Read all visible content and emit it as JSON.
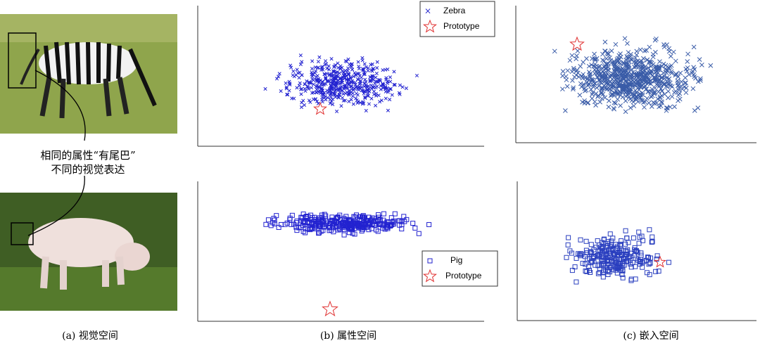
{
  "figure": {
    "panel_a": {
      "annotation": [
        "相同的属性“有尾巴”",
        "不同的视觉表达"
      ],
      "caption": "(a) 视觉空间"
    },
    "panel_b": {
      "legend_top": [
        "Zebra",
        "Prototype"
      ],
      "legend_bottom": [
        "Pig",
        "Prototype"
      ],
      "caption": "(b) 属性空间"
    },
    "panel_c": {
      "caption": "(c) 嵌入空间"
    }
  }
}
